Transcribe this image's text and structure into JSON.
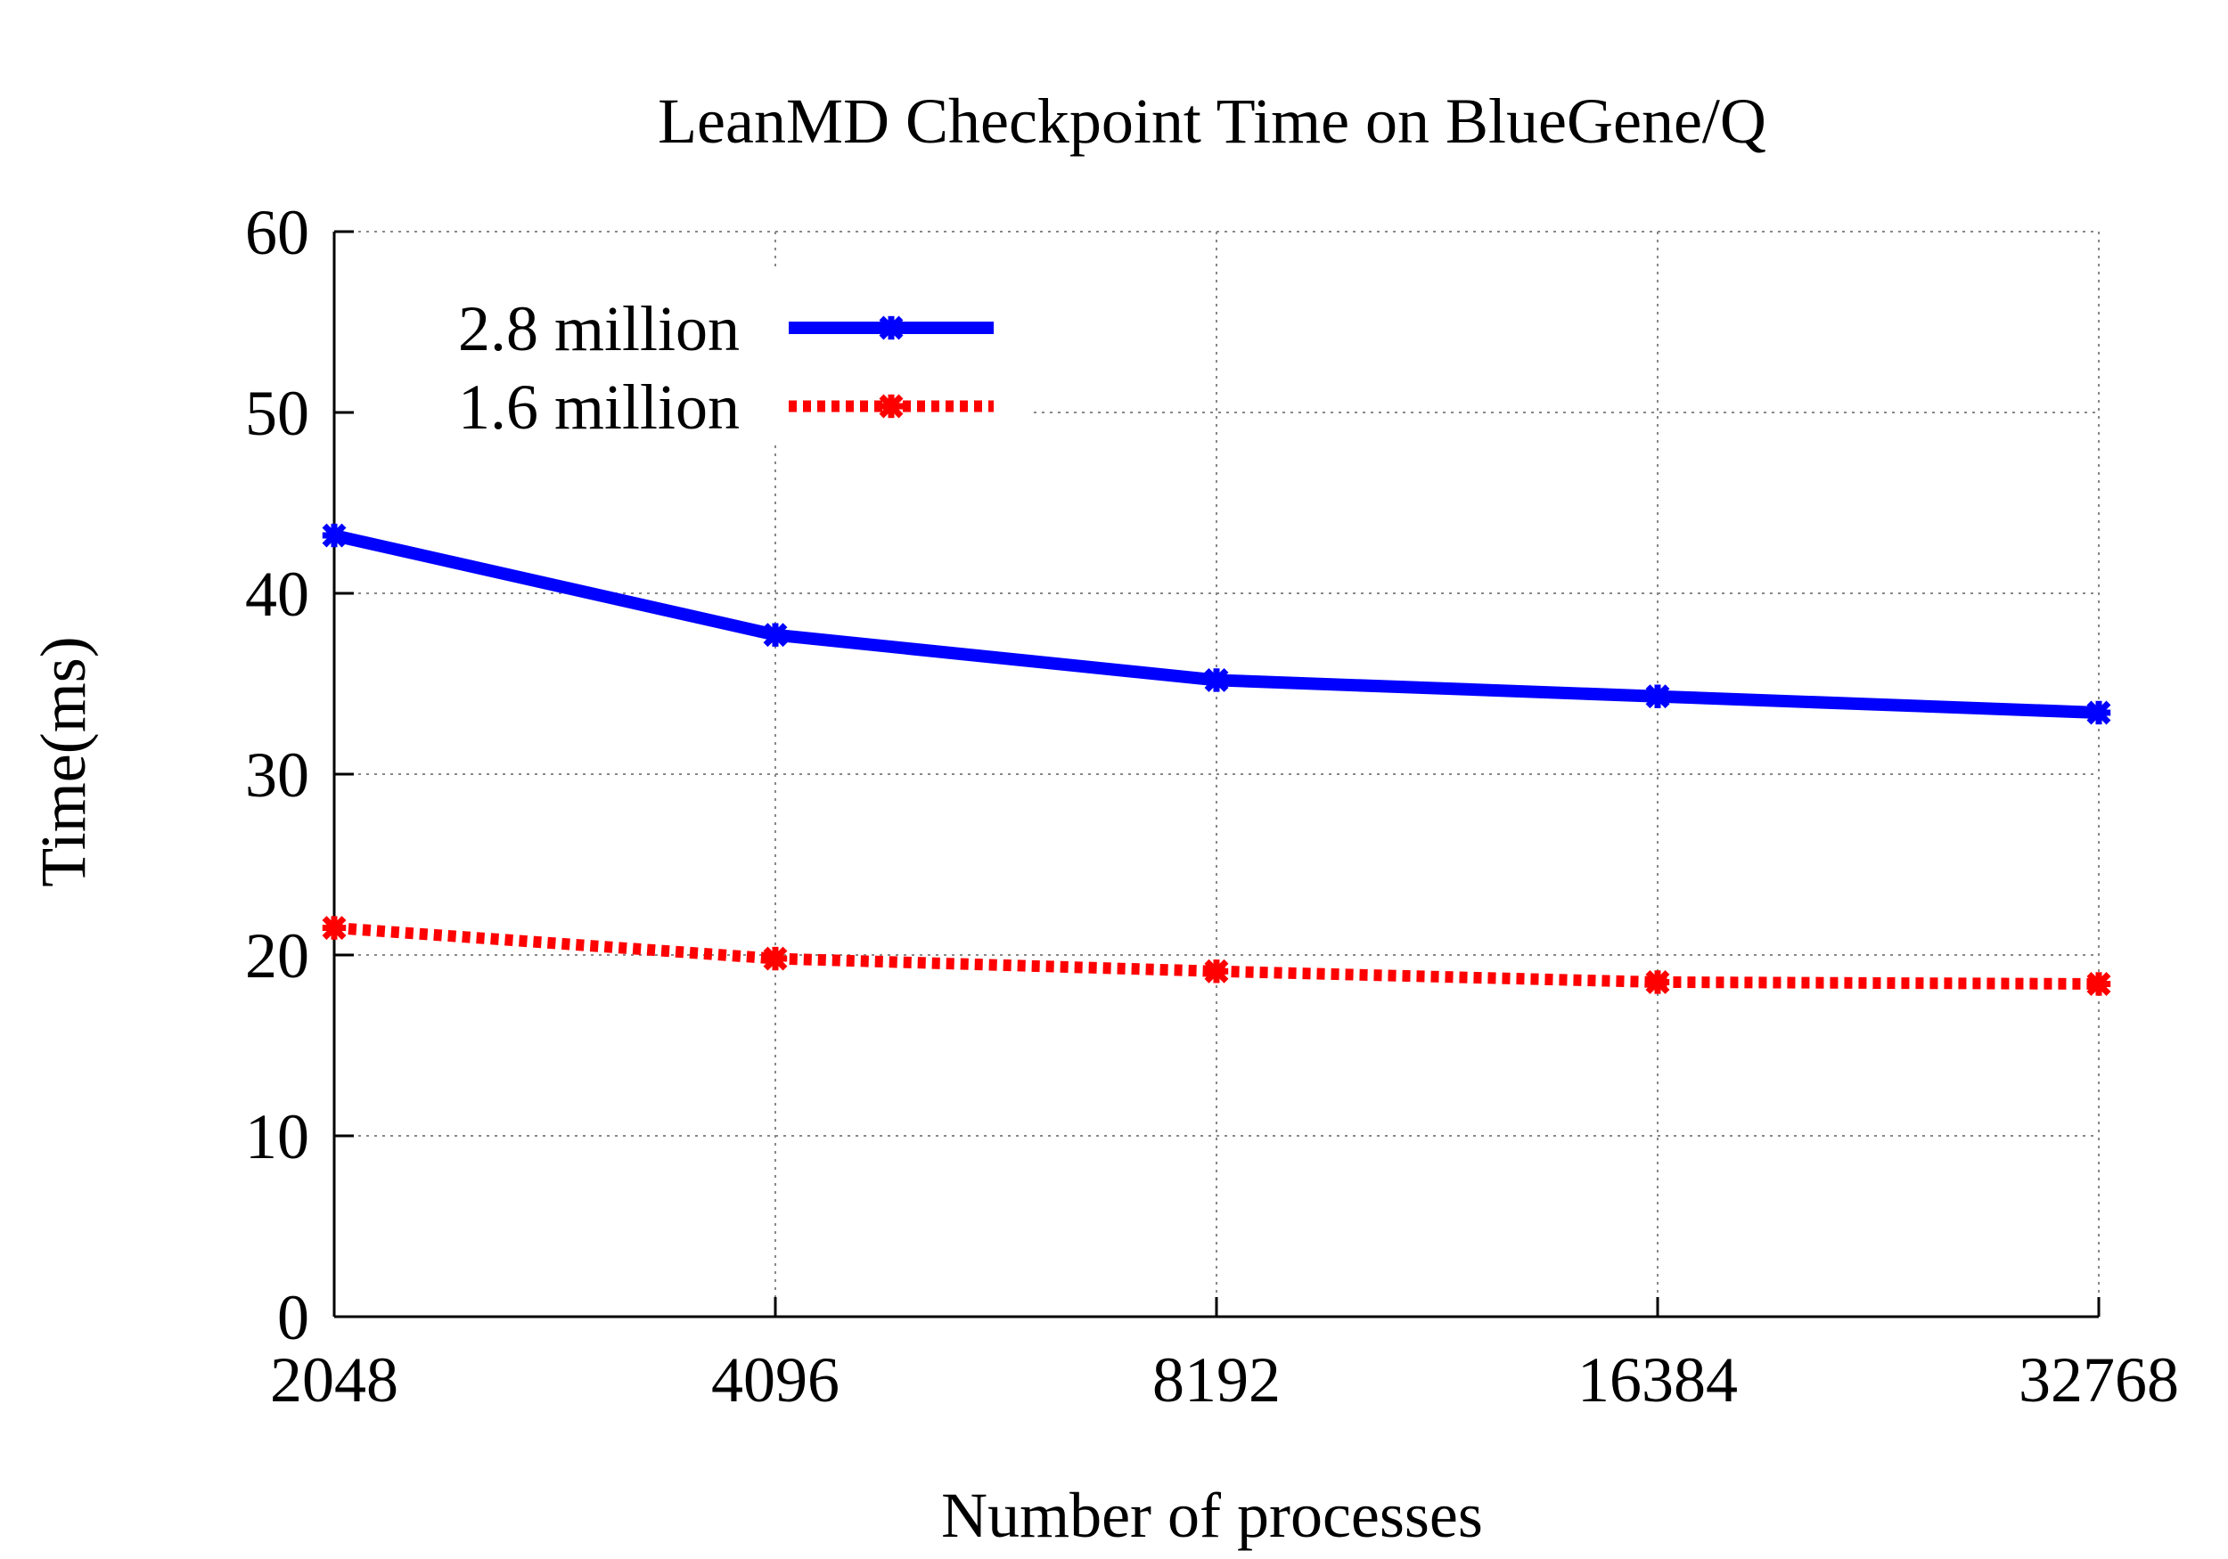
{
  "chart_data": {
    "type": "line",
    "title": "LeanMD Checkpoint Time on BlueGene/Q",
    "xlabel": "Number of processes",
    "ylabel": "Time(ms)",
    "categories": [
      "2048",
      "4096",
      "8192",
      "16384",
      "32768"
    ],
    "ylim": [
      0,
      60
    ],
    "yticks": [
      "0",
      "10",
      "20",
      "30",
      "40",
      "50",
      "60"
    ],
    "grid": true,
    "legend_position": "top-left",
    "series": [
      {
        "name": "2.8 million",
        "values": [
          43.2,
          37.7,
          35.2,
          34.3,
          33.4
        ],
        "color": "#0000ff",
        "style": "solid"
      },
      {
        "name": "1.6 million",
        "values": [
          21.5,
          19.8,
          19.1,
          18.5,
          18.4
        ],
        "color": "#ff0000",
        "style": "dotted"
      }
    ]
  }
}
